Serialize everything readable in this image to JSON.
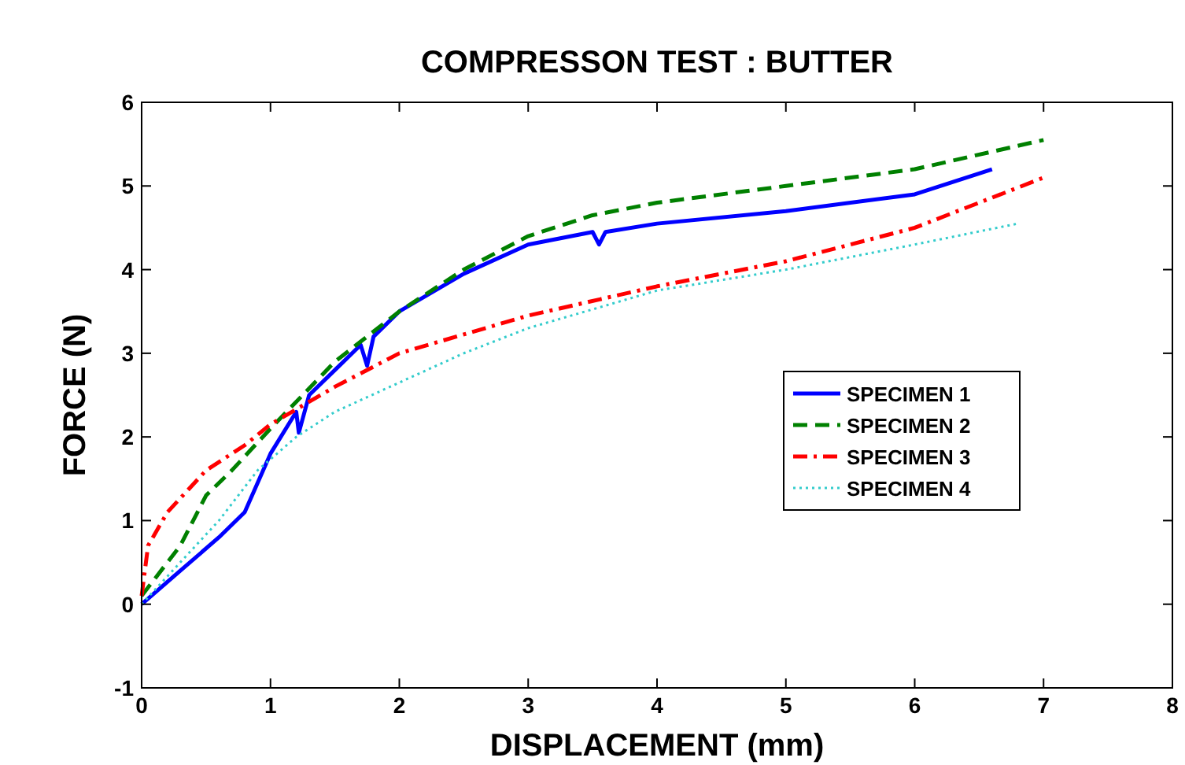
{
  "chart_data": {
    "type": "line",
    "title": "COMPRESSON TEST : BUTTER",
    "xlabel": "DISPLACEMENT (mm)",
    "ylabel": "FORCE (N)",
    "xlim": [
      0,
      8
    ],
    "ylim": [
      -1,
      6
    ],
    "xticks": [
      0,
      1,
      2,
      3,
      4,
      5,
      6,
      7,
      8
    ],
    "yticks": [
      -1,
      0,
      1,
      2,
      3,
      4,
      5,
      6
    ],
    "grid": false,
    "legend": "right",
    "series": [
      {
        "name": "SPECIMEN 1",
        "color": "#0000ff",
        "line_style": "solid",
        "x": [
          0,
          0.3,
          0.6,
          0.8,
          1.0,
          1.2,
          1.22,
          1.3,
          1.5,
          1.7,
          1.75,
          1.8,
          2,
          2.5,
          3,
          3.5,
          3.55,
          3.6,
          4,
          5,
          6,
          6.6
        ],
        "values": [
          0,
          0.4,
          0.8,
          1.1,
          1.8,
          2.3,
          2.05,
          2.5,
          2.8,
          3.1,
          2.85,
          3.2,
          3.5,
          3.95,
          4.3,
          4.45,
          4.3,
          4.45,
          4.55,
          4.7,
          4.9,
          5.2
        ]
      },
      {
        "name": "SPECIMEN 2",
        "color": "#008000",
        "line_style": "dashed",
        "x": [
          0,
          0.1,
          0.3,
          0.5,
          0.7,
          1,
          1.5,
          2,
          2.5,
          3,
          3.5,
          4,
          5,
          6,
          7
        ],
        "values": [
          0.1,
          0.3,
          0.7,
          1.3,
          1.6,
          2.1,
          2.9,
          3.5,
          4.0,
          4.4,
          4.65,
          4.8,
          5.0,
          5.2,
          5.55
        ]
      },
      {
        "name": "SPECIMEN 3",
        "color": "#ff0000",
        "line_style": "dashdot",
        "x": [
          0,
          0.05,
          0.2,
          0.5,
          0.8,
          1,
          1.5,
          2,
          3,
          4,
          5,
          6,
          7
        ],
        "values": [
          0.1,
          0.7,
          1.1,
          1.6,
          1.9,
          2.15,
          2.6,
          3.0,
          3.45,
          3.8,
          4.1,
          4.5,
          5.1
        ]
      },
      {
        "name": "SPECIMEN 4",
        "color": "#33cccc",
        "line_style": "dotted",
        "x": [
          0,
          0.3,
          0.6,
          0.9,
          1.2,
          1.5,
          2,
          2.5,
          3,
          4,
          5,
          6,
          6.8
        ],
        "values": [
          0,
          0.5,
          1.0,
          1.6,
          2.0,
          2.3,
          2.65,
          3.0,
          3.3,
          3.75,
          4.0,
          4.3,
          4.55
        ]
      }
    ]
  }
}
